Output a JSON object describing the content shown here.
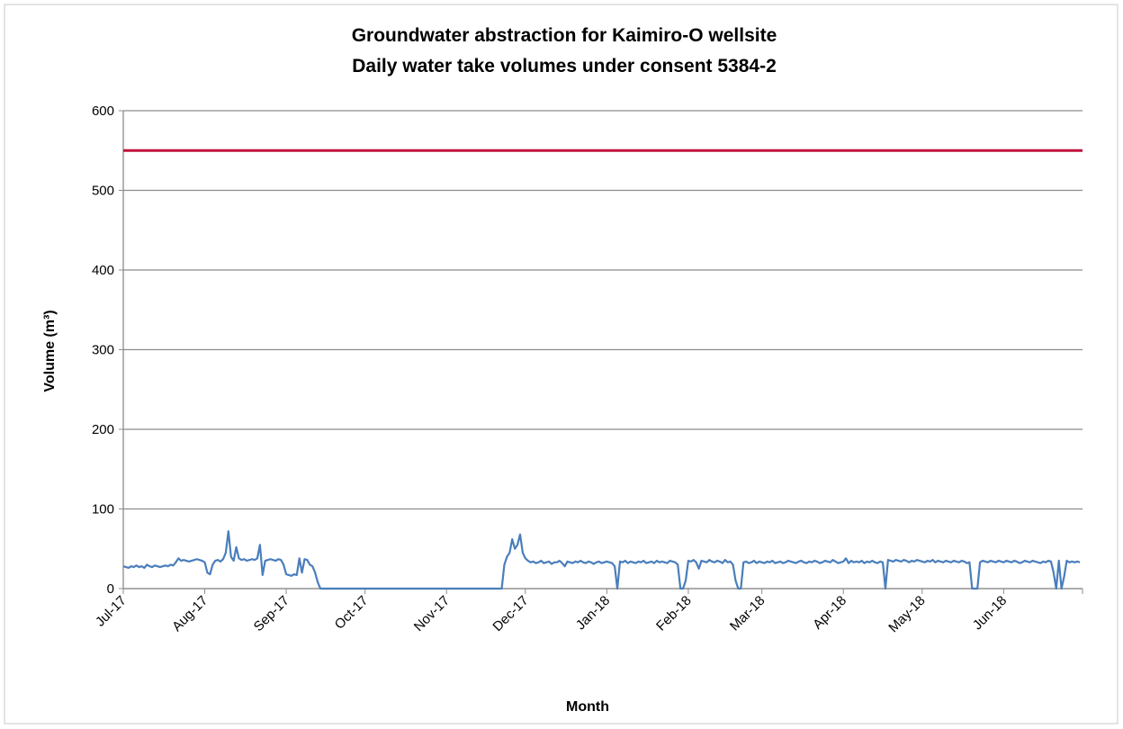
{
  "chart_data": {
    "type": "line",
    "title": "Groundwater abstraction for Kaimiro-O wellsite",
    "subtitle": "Daily water take volumes under consent 5384-2",
    "x_label": "Month",
    "y_label": "Volume (m³)",
    "ylim": [
      0,
      600
    ],
    "yticks": [
      0,
      100,
      200,
      300,
      400,
      500,
      600
    ],
    "grid": true,
    "reference_lines": [
      {
        "value": 550,
        "color": "#c0143c"
      }
    ],
    "categories": [
      "Jul-17",
      null,
      null,
      null,
      null,
      null,
      null,
      null,
      null,
      null,
      null,
      null,
      null,
      null,
      null,
      null,
      null,
      null,
      null,
      null,
      null,
      null,
      null,
      null,
      null,
      null,
      null,
      null,
      null,
      null,
      null,
      "Aug-17",
      null,
      null,
      null,
      null,
      null,
      null,
      null,
      null,
      null,
      null,
      null,
      null,
      null,
      null,
      null,
      null,
      null,
      null,
      null,
      null,
      null,
      null,
      null,
      null,
      null,
      null,
      null,
      null,
      null,
      null,
      "Sep-17",
      null,
      null,
      null,
      null,
      null,
      null,
      null,
      null,
      null,
      null,
      null,
      null,
      null,
      null,
      null,
      null,
      null,
      null,
      null,
      null,
      null,
      null,
      null,
      null,
      null,
      null,
      null,
      null,
      null,
      "Oct-17",
      null,
      null,
      null,
      null,
      null,
      null,
      null,
      null,
      null,
      null,
      null,
      null,
      null,
      null,
      null,
      null,
      null,
      null,
      null,
      null,
      null,
      null,
      null,
      null,
      null,
      null,
      null,
      null,
      null,
      null,
      "Nov-17",
      null,
      null,
      null,
      null,
      null,
      null,
      null,
      null,
      null,
      null,
      null,
      null,
      null,
      null,
      null,
      null,
      null,
      null,
      null,
      null,
      null,
      null,
      null,
      null,
      null,
      null,
      null,
      null,
      null,
      "Dec-17",
      null,
      null,
      null,
      null,
      null,
      null,
      null,
      null,
      null,
      null,
      null,
      null,
      null,
      null,
      null,
      null,
      null,
      null,
      null,
      null,
      null,
      null,
      null,
      null,
      null,
      null,
      null,
      null,
      null,
      null,
      "Jan-18",
      null,
      null,
      null,
      null,
      null,
      null,
      null,
      null,
      null,
      null,
      null,
      null,
      null,
      null,
      null,
      null,
      null,
      null,
      null,
      null,
      null,
      null,
      null,
      null,
      null,
      null,
      null,
      null,
      null,
      null,
      "Feb-18",
      null,
      null,
      null,
      null,
      null,
      null,
      null,
      null,
      null,
      null,
      null,
      null,
      null,
      null,
      null,
      null,
      null,
      null,
      null,
      null,
      null,
      null,
      null,
      null,
      null,
      null,
      null,
      "Mar-18",
      null,
      null,
      null,
      null,
      null,
      null,
      null,
      null,
      null,
      null,
      null,
      null,
      null,
      null,
      null,
      null,
      null,
      null,
      null,
      null,
      null,
      null,
      null,
      null,
      null,
      null,
      null,
      null,
      null,
      null,
      "Apr-18",
      null,
      null,
      null,
      null,
      null,
      null,
      null,
      null,
      null,
      null,
      null,
      null,
      null,
      null,
      null,
      null,
      null,
      null,
      null,
      null,
      null,
      null,
      null,
      null,
      null,
      null,
      null,
      null,
      null,
      "May-18",
      null,
      null,
      null,
      null,
      null,
      null,
      null,
      null,
      null,
      null,
      null,
      null,
      null,
      null,
      null,
      null,
      null,
      null,
      null,
      null,
      null,
      null,
      null,
      null,
      null,
      null,
      null,
      null,
      null,
      null,
      "Jun-18",
      null,
      null,
      null,
      null,
      null,
      null,
      null,
      null,
      null,
      null,
      null,
      null,
      null,
      null,
      null,
      null,
      null,
      null,
      null,
      null,
      null,
      null,
      null,
      null,
      null,
      null,
      null,
      null,
      null
    ],
    "series": [
      {
        "color": "#4a7ebb",
        "values": [
          28,
          27,
          26,
          28,
          27,
          29,
          27,
          28,
          26,
          30,
          28,
          27,
          29,
          28,
          27,
          28,
          29,
          28,
          30,
          29,
          33,
          38,
          35,
          36,
          35,
          34,
          35,
          36,
          37,
          36,
          35,
          33,
          20,
          18,
          30,
          35,
          36,
          34,
          37,
          45,
          72,
          40,
          35,
          52,
          38,
          36,
          37,
          35,
          36,
          37,
          36,
          38,
          55,
          17,
          35,
          36,
          37,
          36,
          35,
          37,
          36,
          30,
          18,
          17,
          16,
          18,
          17,
          38,
          20,
          37,
          36,
          30,
          28,
          20,
          8,
          0,
          0,
          0,
          0,
          0,
          0,
          0,
          0,
          0,
          0,
          0,
          0,
          0,
          0,
          0,
          0,
          0,
          0,
          0,
          0,
          0,
          0,
          0,
          0,
          0,
          0,
          0,
          0,
          0,
          0,
          0,
          0,
          0,
          0,
          0,
          0,
          0,
          0,
          0,
          0,
          0,
          0,
          0,
          0,
          0,
          0,
          0,
          0,
          0,
          0,
          0,
          0,
          0,
          0,
          0,
          0,
          0,
          0,
          0,
          0,
          0,
          0,
          0,
          0,
          0,
          0,
          0,
          0,
          0,
          0,
          30,
          40,
          45,
          62,
          50,
          55,
          68,
          45,
          38,
          35,
          33,
          34,
          32,
          33,
          35,
          32,
          33,
          34,
          31,
          33,
          33,
          35,
          32,
          28,
          34,
          33,
          32,
          34,
          33,
          35,
          33,
          32,
          34,
          33,
          31,
          33,
          34,
          32,
          33,
          34,
          33,
          32,
          28,
          0,
          34,
          33,
          35,
          32,
          34,
          33,
          32,
          34,
          33,
          35,
          32,
          33,
          34,
          32,
          35,
          33,
          34,
          33,
          32,
          35,
          34,
          33,
          30,
          0,
          0,
          10,
          35,
          34,
          36,
          33,
          25,
          35,
          34,
          33,
          36,
          34,
          33,
          35,
          34,
          32,
          36,
          33,
          34,
          30,
          10,
          0,
          0,
          33,
          34,
          32,
          33,
          35,
          32,
          34,
          33,
          32,
          34,
          33,
          35,
          32,
          33,
          34,
          32,
          33,
          35,
          34,
          33,
          32,
          34,
          35,
          33,
          32,
          34,
          33,
          35,
          34,
          32,
          33,
          35,
          34,
          33,
          36,
          34,
          32,
          33,
          34,
          38,
          32,
          35,
          33,
          34,
          33,
          35,
          32,
          34,
          33,
          35,
          33,
          32,
          34,
          33,
          0,
          36,
          35,
          34,
          36,
          35,
          34,
          36,
          35,
          33,
          35,
          34,
          36,
          35,
          34,
          33,
          35,
          34,
          36,
          33,
          35,
          34,
          33,
          35,
          34,
          33,
          35,
          34,
          33,
          35,
          34,
          32,
          33,
          0,
          0,
          0,
          33,
          35,
          34,
          33,
          35,
          34,
          33,
          35,
          34,
          33,
          35,
          34,
          33,
          35,
          34,
          32,
          33,
          35,
          34,
          33,
          35,
          34,
          33,
          32,
          34,
          33,
          35,
          34,
          20,
          0,
          35,
          0,
          15,
          35,
          33,
          34,
          33,
          34,
          33
        ]
      }
    ]
  }
}
